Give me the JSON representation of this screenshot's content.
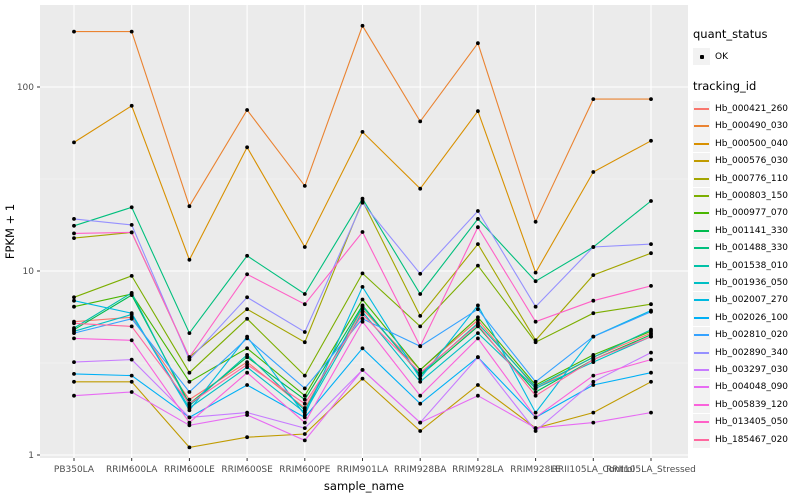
{
  "figure": {
    "background": "#FFFFFF",
    "panel_bg": "#EBEBEB",
    "grid_major_color": "#FFFFFF",
    "grid_minor_color": "#F7F7F7",
    "tick_text_color": "#4D4D4D",
    "axis_title_color": "#000000",
    "point_color": "#000000"
  },
  "axes": {
    "x_title": "sample_name",
    "y_title": "FPKM + 1",
    "y_ticks": [
      {
        "label": "1",
        "value": 1
      },
      {
        "label": "10",
        "value": 10
      },
      {
        "label": "100",
        "value": 100
      }
    ]
  },
  "legend": {
    "quant_status_title": "quant_status",
    "quant_status_items": [
      {
        "label": "OK"
      }
    ],
    "tracking_title": "tracking_id"
  },
  "chart_data": {
    "type": "line",
    "title": "",
    "xlabel": "sample_name",
    "ylabel": "FPKM + 1",
    "y_scale": "log10",
    "ylim": [
      1,
      250
    ],
    "grid": true,
    "legend_position": "right",
    "point_shape": "filled-black-point",
    "categories": [
      "PB350LA",
      "RRIM600LA",
      "RRIM600LE",
      "RRIM600SE",
      "RRIM600PE",
      "RRIM901LA",
      "RRIM928BA",
      "RRIM928LA",
      "RRIM928LE",
      "RRII105LA_Control",
      "RRII105LA_Stressed"
    ],
    "series": [
      {
        "name": "Hb_000421_260",
        "color": "#F8766D",
        "values": [
          5.3,
          5.6,
          2.0,
          3.2,
          1.8,
          6.2,
          2.9,
          5.4,
          2.3,
          3.4,
          4.6
        ]
      },
      {
        "name": "Hb_000490_030",
        "color": "#EA8331",
        "values": [
          200,
          200,
          22.5,
          75,
          29,
          215,
          65,
          173,
          18.5,
          86,
          86
        ]
      },
      {
        "name": "Hb_000500_040",
        "color": "#D89000",
        "values": [
          50,
          79,
          11.5,
          47,
          13.5,
          57,
          28,
          74,
          9.8,
          34.5,
          51
        ]
      },
      {
        "name": "Hb_000576_030",
        "color": "#C09B00",
        "values": [
          2.5,
          2.5,
          1.1,
          1.25,
          1.3,
          2.6,
          1.35,
          2.4,
          1.4,
          1.7,
          2.5
        ]
      },
      {
        "name": "Hb_000776_110",
        "color": "#A3A500",
        "values": [
          15.1,
          16.2,
          3.4,
          6.2,
          4.1,
          24,
          5.7,
          14,
          4.2,
          9.5,
          12.5
        ]
      },
      {
        "name": "Hb_000803_150",
        "color": "#7CAE00",
        "values": [
          7.2,
          9.4,
          2.8,
          5.5,
          2.7,
          9.7,
          5.0,
          10.7,
          4.1,
          5.9,
          6.6
        ]
      },
      {
        "name": "Hb_000977_070",
        "color": "#49B500",
        "values": [
          6.4,
          7.5,
          2.5,
          3.8,
          2.1,
          7.0,
          2.9,
          5.6,
          2.4,
          3.5,
          4.7
        ]
      },
      {
        "name": "Hb_001141_330",
        "color": "#00BB4E",
        "values": [
          4.8,
          7.4,
          1.9,
          3.4,
          2.0,
          6.5,
          2.7,
          5.0,
          2.2,
          3.3,
          4.5
        ]
      },
      {
        "name": "Hb_001488_330",
        "color": "#00BF7D",
        "values": [
          17.6,
          22.2,
          4.6,
          12.1,
          7.5,
          24.7,
          7.5,
          19.2,
          8.8,
          13.5,
          24
        ]
      },
      {
        "name": "Hb_001538_010",
        "color": "#00C1A7",
        "values": [
          4.9,
          7.6,
          1.85,
          3.5,
          1.75,
          6.4,
          2.75,
          5.2,
          2.35,
          3.4,
          4.8
        ]
      },
      {
        "name": "Hb_001936_050",
        "color": "#00BFC4",
        "values": [
          4.7,
          5.8,
          1.8,
          3.0,
          1.7,
          6.0,
          2.5,
          4.6,
          2.3,
          3.2,
          4.4
        ]
      },
      {
        "name": "Hb_002007_270",
        "color": "#00BAE0",
        "values": [
          6.9,
          5.9,
          1.75,
          4.4,
          1.65,
          8.2,
          2.6,
          6.5,
          1.7,
          4.4,
          6.1
        ]
      },
      {
        "name": "Hb_002026_100",
        "color": "#00B0F6",
        "values": [
          2.76,
          2.7,
          1.6,
          2.4,
          1.6,
          3.8,
          1.9,
          3.4,
          1.6,
          2.4,
          2.8
        ]
      },
      {
        "name": "Hb_002810_020",
        "color": "#35A2FF",
        "values": [
          4.6,
          5.5,
          2.2,
          4.3,
          2.3,
          5.5,
          3.9,
          6.2,
          2.5,
          4.4,
          6.0
        ]
      },
      {
        "name": "Hb_002890_340",
        "color": "#9590FF",
        "values": [
          19.2,
          17.8,
          3.3,
          7.2,
          4.66,
          23.5,
          9.65,
          21.2,
          6.4,
          13.5,
          14
        ]
      },
      {
        "name": "Hb_003297_030",
        "color": "#C77CFF",
        "values": [
          3.2,
          3.3,
          1.6,
          1.7,
          1.4,
          2.9,
          1.5,
          3.4,
          1.35,
          2.5,
          3.6
        ]
      },
      {
        "name": "Hb_004048_090",
        "color": "#E76BF3",
        "values": [
          2.1,
          2.2,
          1.45,
          1.65,
          1.2,
          2.9,
          1.5,
          2.1,
          1.4,
          1.5,
          1.7
        ]
      },
      {
        "name": "Hb_005839_120",
        "color": "#FA62DB",
        "values": [
          4.3,
          4.2,
          1.5,
          2.8,
          1.5,
          5.3,
          2.1,
          4.3,
          1.6,
          2.7,
          3.3
        ]
      },
      {
        "name": "Hb_013405_050",
        "color": "#FF61C7",
        "values": [
          16.0,
          16.2,
          3.4,
          9.6,
          6.6,
          16.3,
          3.9,
          17.3,
          5.3,
          6.9,
          8.3
        ]
      },
      {
        "name": "Hb_185467_020",
        "color": "#FF689F",
        "values": [
          5.2,
          5.0,
          1.9,
          3.1,
          1.9,
          5.8,
          2.8,
          5.1,
          2.1,
          3.3,
          4.4
        ]
      }
    ]
  }
}
